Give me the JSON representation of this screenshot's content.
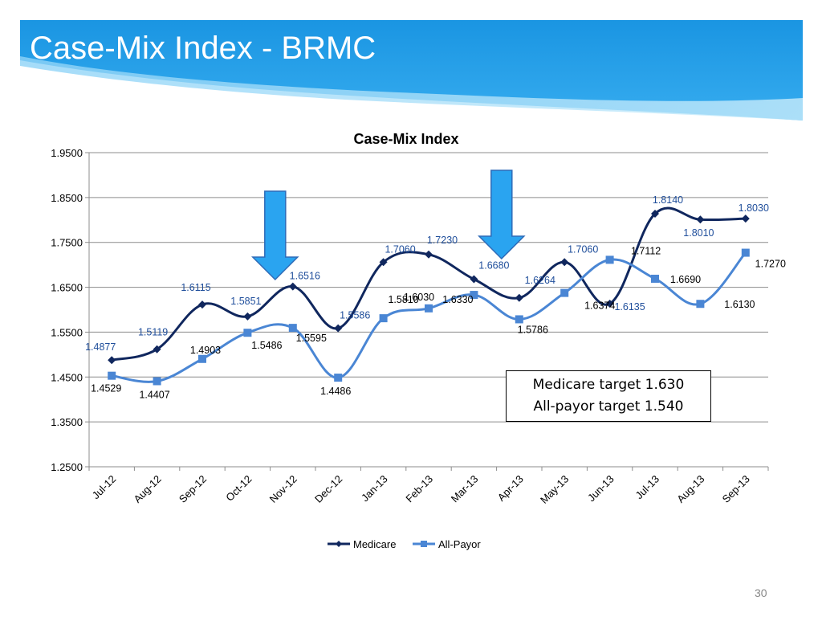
{
  "slide": {
    "title": "Case-Mix Index - BRMC",
    "page_number": "30",
    "banner_color": "#1E9FE8",
    "accent_colors": {
      "medicare": "#10275E",
      "all_payor": "#4A86D4",
      "medicare_labels": "#1F4E9B",
      "arrow_fill": "#2AA4F0",
      "arrow_stroke": "#2E6BB8"
    }
  },
  "annotations": {
    "targets": [
      "Medicare target 1.630",
      "All-payor target 1.540"
    ],
    "arrow_markers": [
      {
        "category": "Nov-12",
        "direction": "down"
      },
      {
        "category": "Apr-13",
        "direction": "down"
      }
    ]
  },
  "chart_data": {
    "type": "line",
    "title": "Case-Mix Index",
    "xlabel": "",
    "ylabel": "",
    "categories": [
      "Jul-12",
      "Aug-12",
      "Sep-12",
      "Oct-12",
      "Nov-12",
      "Dec-12",
      "Jan-13",
      "Feb-13",
      "Mar-13",
      "Apr-13",
      "May-13",
      "Jun-13",
      "Jul-13",
      "Aug-13",
      "Sep-13"
    ],
    "ylim": [
      1.25,
      1.95
    ],
    "yticks": [
      "1.2500",
      "1.3500",
      "1.4500",
      "1.5500",
      "1.6500",
      "1.7500",
      "1.8500",
      "1.9500"
    ],
    "grid": true,
    "legend": "bottom",
    "series": [
      {
        "name": "Medicare",
        "color": "#10275E",
        "marker": "diamond",
        "values": [
          1.4877,
          1.5119,
          1.6115,
          1.5851,
          1.6516,
          1.5586,
          1.706,
          1.723,
          1.668,
          1.6264,
          1.706,
          1.6135,
          1.814,
          1.801,
          1.803
        ],
        "data_labels": [
          "1.4877",
          "1.5119",
          "1.6115",
          "1.5851",
          "1.6516",
          "1.5586",
          "1.7060",
          "1.7230",
          "1.6680",
          "1.6264",
          "1.7060",
          "1.6135",
          "1.8140",
          "1.8010",
          "1.8030"
        ]
      },
      {
        "name": "All-Payor",
        "color": "#4A86D4",
        "marker": "square",
        "values": [
          1.4529,
          1.4407,
          1.4903,
          1.5486,
          1.5595,
          1.4486,
          1.581,
          1.603,
          1.633,
          1.5786,
          1.6374,
          1.7112,
          1.669,
          1.613,
          1.727
        ],
        "data_labels": [
          "1.4529",
          "1.4407",
          "1.4903",
          "1.5486",
          "1.5595",
          "1.4486",
          "1.5810",
          "1.6030",
          "1.6330",
          "1.5786",
          "1.6374",
          "1.7112",
          "1.6690",
          "1.6130",
          "1.7270"
        ]
      }
    ]
  }
}
